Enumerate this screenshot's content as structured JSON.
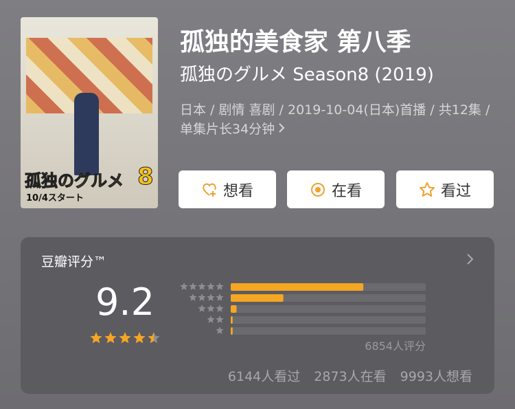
{
  "poster": {
    "title_art": "孤独のグルメ",
    "season_number": "8",
    "date_text": "10/4スタート"
  },
  "header": {
    "title": "孤独的美食家 第八季",
    "original_title": "孤独のグルメ Season8 (2019)",
    "info": "日本 / 剧情 喜剧 / 2019-10-04(日本)首播 / 共12集 / 单集片长34分钟"
  },
  "buttons": [
    "想看",
    "在看",
    "看过"
  ],
  "rating": {
    "label": "豆瓣评分™",
    "score": "9.2",
    "stars": 4.5,
    "distribution": [
      68,
      27,
      3,
      1,
      1
    ],
    "count_text": "6854人评分",
    "stats": [
      "6144人看过",
      "2873人在看",
      "9993人想看"
    ]
  }
}
